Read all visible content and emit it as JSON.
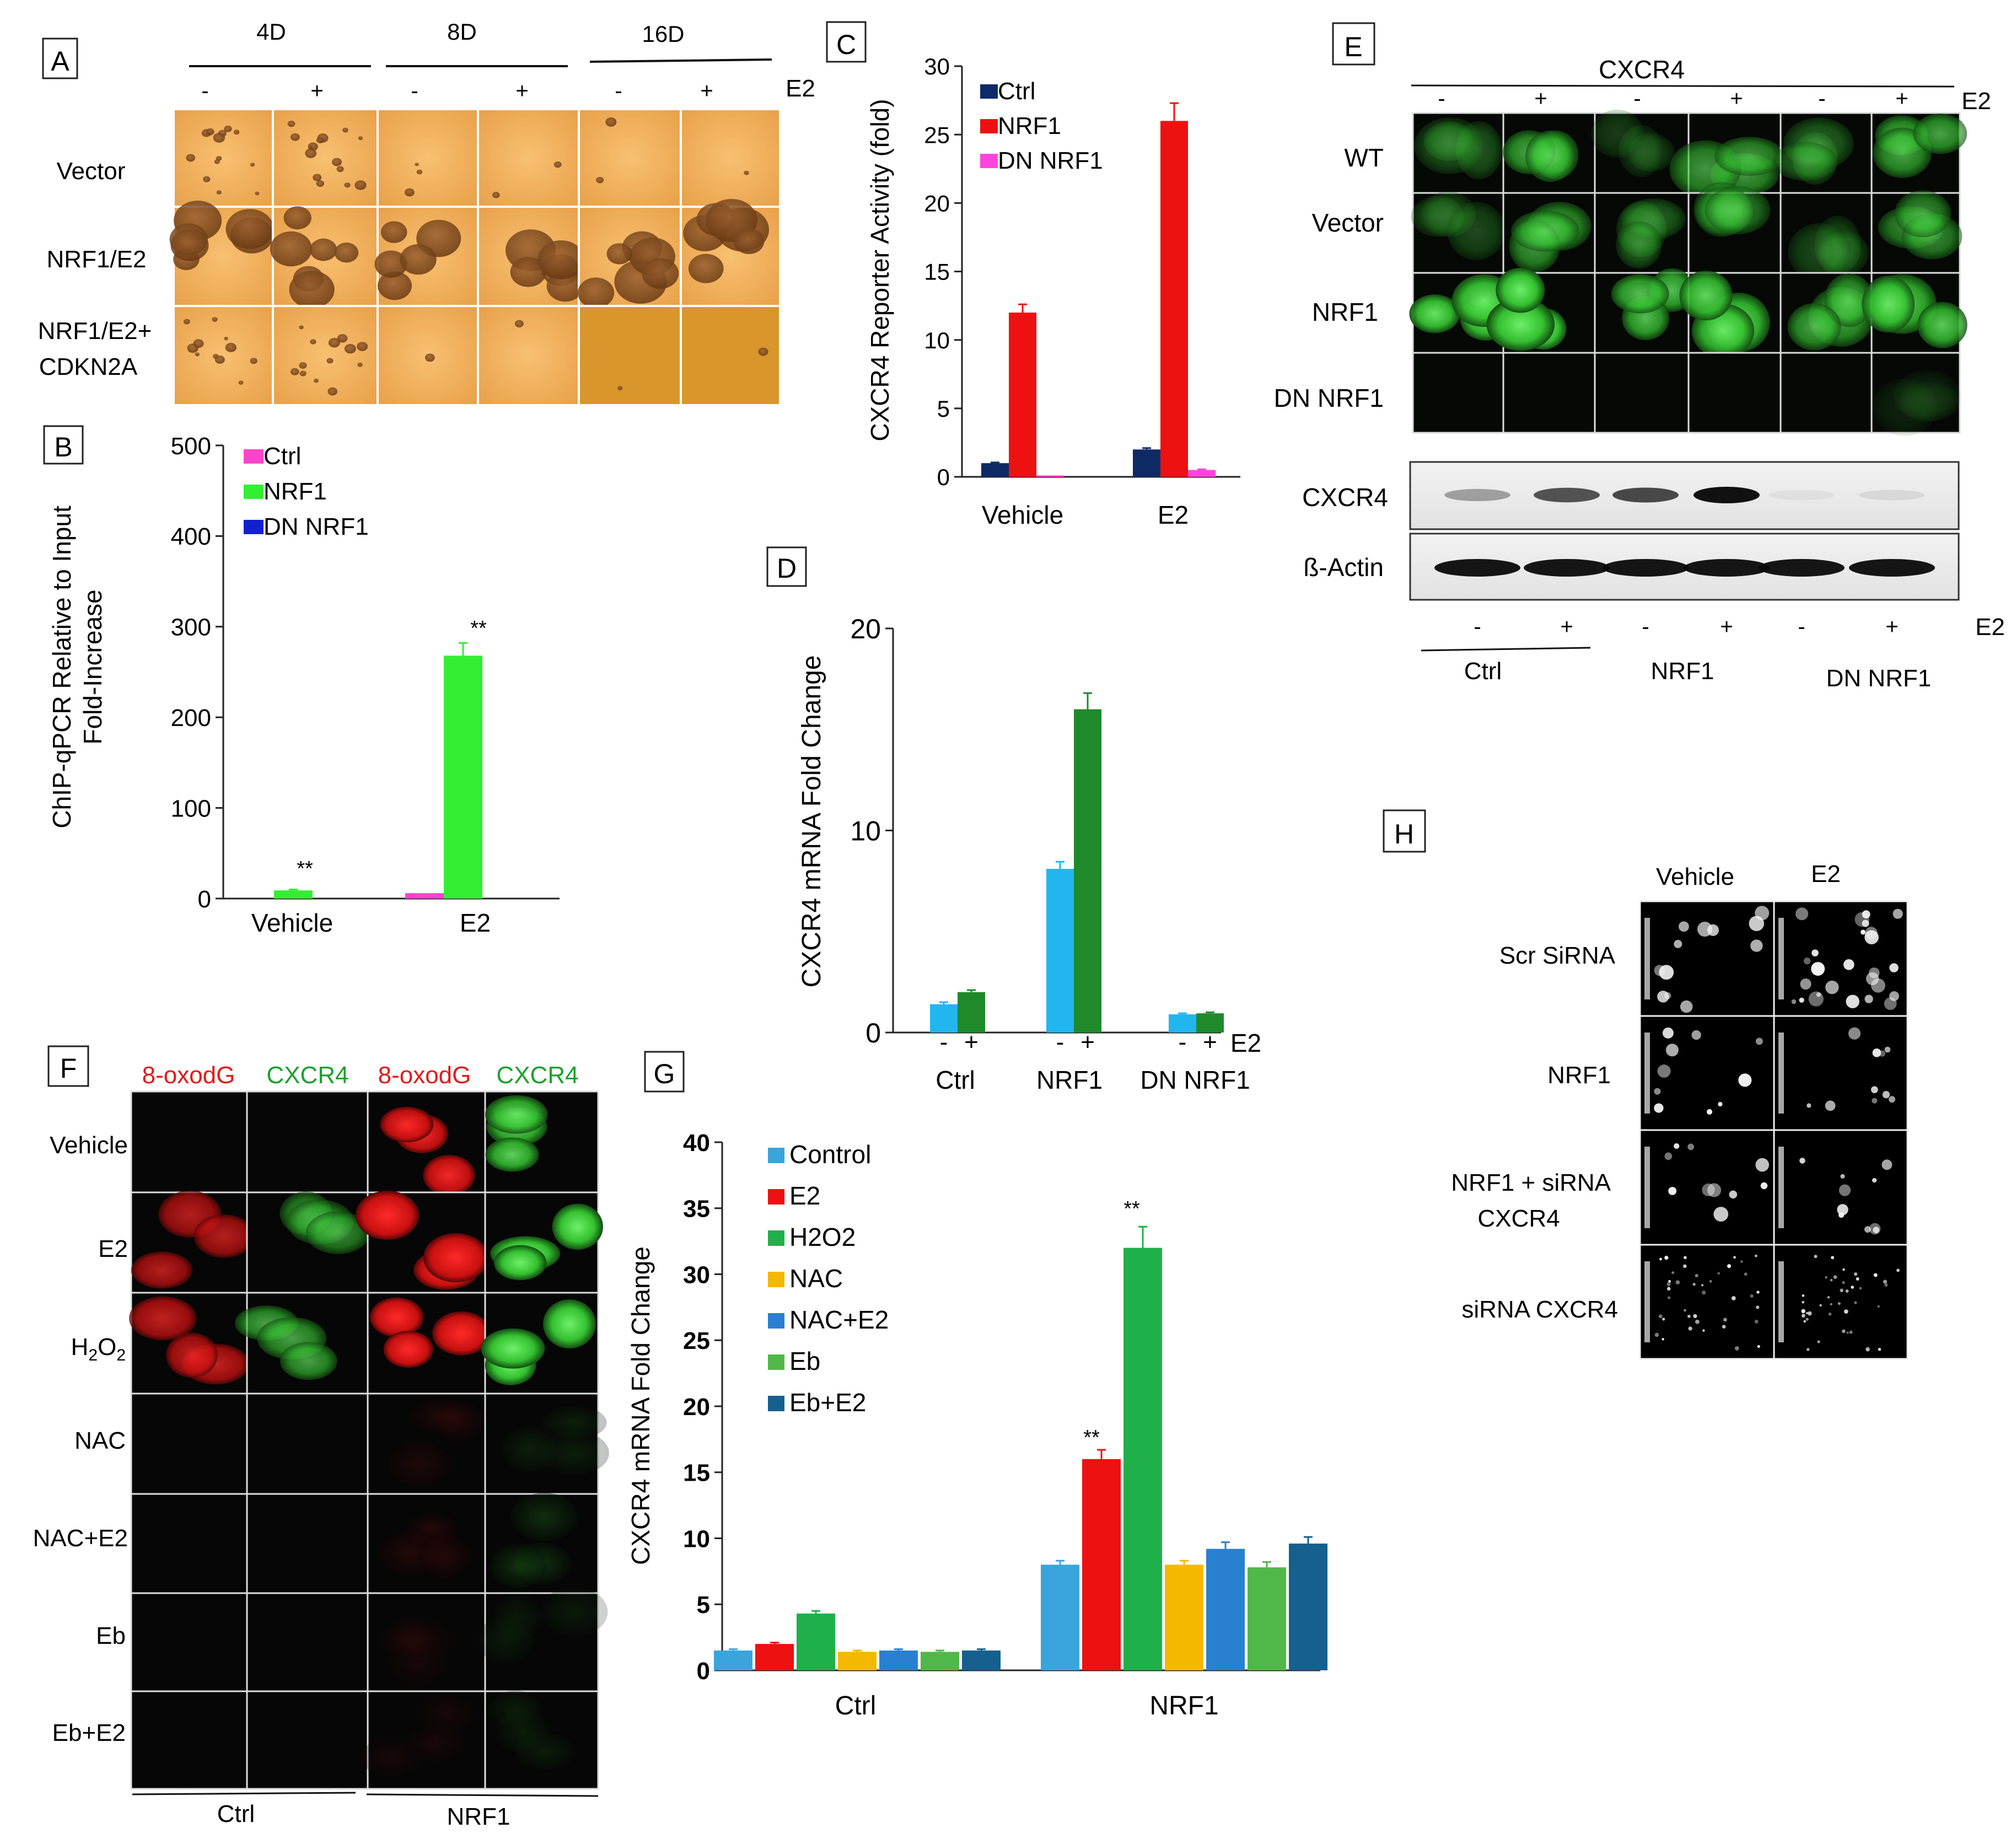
{
  "panels": {
    "A": {
      "letter": "A",
      "days": [
        "4D",
        "8D",
        "16D"
      ],
      "signs": [
        "-",
        "+",
        "-",
        "+",
        "-",
        "+"
      ],
      "e2_label": "E2",
      "rows": [
        "Vector",
        "NRF1/E2",
        "NRF1/E2+",
        "CDKN2A"
      ]
    },
    "E": {
      "letter": "E",
      "title": "CXCR4",
      "signs": [
        "-",
        "+",
        "-",
        "+",
        "-",
        "+"
      ],
      "e2_label": "E2",
      "rows": [
        "WT",
        "Vector",
        "NRF1",
        "DN NRF1"
      ],
      "blot_rows": [
        "CXCR4",
        "ß-Actin"
      ],
      "groups": [
        "Ctrl",
        "NRF1",
        "DN NRF1"
      ]
    },
    "F": {
      "letter": "F",
      "columns": [
        "8-oxodG",
        "CXCR4",
        "8-oxodG",
        "CXCR4"
      ],
      "rows": [
        "Vehicle",
        "E2",
        "H2O2",
        "NAC",
        "NAC+E2",
        "Eb",
        "Eb+E2"
      ],
      "h2o2_parts": [
        "H",
        "2",
        "O",
        "2"
      ],
      "groups": [
        "Ctrl",
        "NRF1"
      ]
    },
    "H": {
      "letter": "H",
      "columns": [
        "Vehicle",
        "E2"
      ],
      "rows": [
        "Scr SiRNA",
        "NRF1",
        "NRF1 + siRNA",
        "CXCR4",
        "siRNA CXCR4"
      ]
    }
  },
  "colors": {
    "b_ctrl": "#ff44cc",
    "b_nrf1": "#33ee33",
    "b_dn": "#1122cc",
    "c_ctrl": "#0d2a66",
    "c_nrf1": "#ee1111",
    "c_dn": "#ff44dd",
    "d_minus": "#22b6ee",
    "d_plus": "#1f8a2a",
    "g": [
      "#3aa4dc",
      "#ee1111",
      "#1fb04b",
      "#f5b800",
      "#2a80d0",
      "#50b848",
      "#15608e"
    ]
  },
  "chart_data": [
    {
      "panel": "B",
      "type": "bar",
      "title": "",
      "ylabel": "ChIP-qPCR Relative to Input Fold-Increase",
      "ylabel_lines": [
        "ChIP-qPCR Relative to Input",
        "Fold-Increase"
      ],
      "ylim": [
        0,
        500
      ],
      "yticks": [
        0,
        100,
        200,
        300,
        400,
        500
      ],
      "categories": [
        "Vehicle",
        "E2"
      ],
      "series": [
        {
          "name": "Ctrl",
          "values": [
            0,
            6
          ],
          "errors": [
            0,
            0
          ]
        },
        {
          "name": "NRF1",
          "values": [
            9,
            268
          ],
          "errors": [
            1,
            14
          ]
        },
        {
          "name": "DN NRF1",
          "values": [
            0,
            0
          ],
          "errors": [
            0,
            0
          ]
        }
      ],
      "annotations": [
        "**",
        "**"
      ],
      "legend": "top-left"
    },
    {
      "panel": "C",
      "type": "bar",
      "title": "",
      "ylabel": "CXCR4 Reporter Activity (fold)",
      "ylim": [
        0,
        30
      ],
      "yticks": [
        0,
        5,
        10,
        15,
        20,
        25,
        30
      ],
      "categories": [
        "Vehicle",
        "E2"
      ],
      "series": [
        {
          "name": "Ctrl",
          "values": [
            1,
            2
          ],
          "errors": [
            0.05,
            0.1
          ]
        },
        {
          "name": "NRF1",
          "values": [
            12,
            26
          ],
          "errors": [
            0.6,
            1.3
          ]
        },
        {
          "name": "DN NRF1",
          "values": [
            0.1,
            0.5
          ],
          "errors": [
            0,
            0.05
          ]
        }
      ],
      "legend": "top-left"
    },
    {
      "panel": "D",
      "type": "bar",
      "title": "",
      "ylabel": "CXCR4 mRNA Fold Change",
      "ylim": [
        0,
        20
      ],
      "yticks": [
        0,
        10,
        20
      ],
      "categories": [
        "Ctrl",
        "NRF1",
        "DN NRF1"
      ],
      "x_signs": [
        "-",
        "+"
      ],
      "x_extra_label": "E2",
      "series": [
        {
          "name": "-",
          "values": [
            1.4,
            8.1,
            0.9
          ],
          "errors": [
            0.1,
            0.35,
            0.05
          ]
        },
        {
          "name": "+",
          "values": [
            2.0,
            16.0,
            0.95
          ],
          "errors": [
            0.1,
            0.8,
            0.05
          ]
        }
      ]
    },
    {
      "panel": "G",
      "type": "bar",
      "title": "",
      "ylabel": "CXCR4 mRNA Fold Change",
      "ylim": [
        0,
        40
      ],
      "yticks": [
        0,
        5,
        10,
        15,
        20,
        25,
        30,
        35,
        40
      ],
      "categories": [
        "Ctrl",
        "NRF1"
      ],
      "series": [
        {
          "name": "Control",
          "values": [
            1.5,
            8.0
          ],
          "errors": [
            0.1,
            0.3
          ]
        },
        {
          "name": "E2",
          "values": [
            2.0,
            16.0
          ],
          "errors": [
            0.1,
            0.7
          ]
        },
        {
          "name": "H2O2",
          "values": [
            4.3,
            32.0
          ],
          "errors": [
            0.2,
            1.6
          ]
        },
        {
          "name": "NAC",
          "values": [
            1.4,
            8.0
          ],
          "errors": [
            0.1,
            0.3
          ]
        },
        {
          "name": "NAC+E2",
          "values": [
            1.5,
            9.2
          ],
          "errors": [
            0.1,
            0.5
          ]
        },
        {
          "name": "Eb",
          "values": [
            1.4,
            7.8
          ],
          "errors": [
            0.1,
            0.4
          ]
        },
        {
          "name": "Eb+E2",
          "values": [
            1.5,
            9.6
          ],
          "errors": [
            0.1,
            0.5
          ]
        }
      ],
      "annotations": [
        "**",
        "**"
      ],
      "legend": "top-left"
    }
  ]
}
